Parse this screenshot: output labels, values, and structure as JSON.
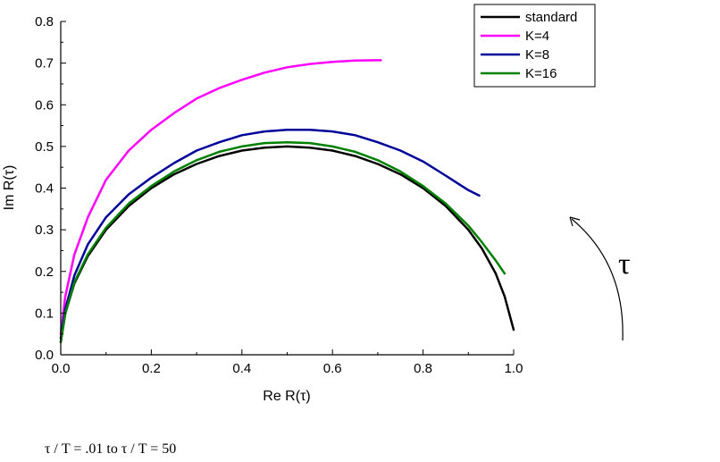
{
  "chart_data": {
    "type": "line",
    "xlabel": "Re R(τ)",
    "ylabel": "Im R(τ)",
    "xlim": [
      0,
      1.0
    ],
    "ylim": [
      0,
      0.8
    ],
    "x_ticks": [
      "0.0",
      "0.2",
      "0.4",
      "0.6",
      "0.8",
      "1.0"
    ],
    "y_ticks": [
      "0.0",
      "0.1",
      "0.2",
      "0.3",
      "0.4",
      "0.5",
      "0.6",
      "0.7",
      "0.8"
    ],
    "legend_position": "top-right",
    "grid": false,
    "series": [
      {
        "name": "standard",
        "color": "#000000",
        "x": [
          0.0,
          0.01,
          0.03,
          0.06,
          0.1,
          0.15,
          0.2,
          0.25,
          0.3,
          0.35,
          0.4,
          0.45,
          0.5,
          0.55,
          0.6,
          0.65,
          0.7,
          0.75,
          0.8,
          0.85,
          0.9,
          0.93,
          0.96,
          0.98,
          1.0
        ],
        "y": [
          0.03,
          0.099,
          0.171,
          0.237,
          0.3,
          0.357,
          0.4,
          0.433,
          0.458,
          0.477,
          0.49,
          0.497,
          0.5,
          0.497,
          0.49,
          0.477,
          0.458,
          0.433,
          0.4,
          0.357,
          0.3,
          0.255,
          0.196,
          0.14,
          0.06
        ]
      },
      {
        "name": "K=4",
        "color": "#ff00ff",
        "x": [
          0.0,
          0.01,
          0.03,
          0.06,
          0.1,
          0.15,
          0.2,
          0.25,
          0.3,
          0.35,
          0.4,
          0.45,
          0.5,
          0.55,
          0.6,
          0.65,
          0.7,
          0.707
        ],
        "y": [
          0.05,
          0.14,
          0.24,
          0.33,
          0.42,
          0.49,
          0.54,
          0.58,
          0.615,
          0.64,
          0.66,
          0.677,
          0.69,
          0.698,
          0.703,
          0.706,
          0.707,
          0.707
        ]
      },
      {
        "name": "K=8",
        "color": "#000099",
        "x": [
          0.0,
          0.01,
          0.03,
          0.06,
          0.1,
          0.15,
          0.2,
          0.25,
          0.3,
          0.35,
          0.4,
          0.45,
          0.5,
          0.55,
          0.6,
          0.65,
          0.7,
          0.75,
          0.8,
          0.85,
          0.9,
          0.924
        ],
        "y": [
          0.04,
          0.11,
          0.19,
          0.265,
          0.33,
          0.385,
          0.425,
          0.46,
          0.49,
          0.51,
          0.527,
          0.536,
          0.54,
          0.54,
          0.536,
          0.527,
          0.51,
          0.49,
          0.464,
          0.43,
          0.395,
          0.382
        ]
      },
      {
        "name": "K=16",
        "color": "#008000",
        "x": [
          0.0,
          0.01,
          0.03,
          0.06,
          0.1,
          0.15,
          0.2,
          0.25,
          0.3,
          0.35,
          0.4,
          0.45,
          0.5,
          0.55,
          0.6,
          0.65,
          0.7,
          0.75,
          0.8,
          0.85,
          0.9,
          0.93,
          0.96,
          0.98
        ],
        "y": [
          0.03,
          0.1,
          0.174,
          0.241,
          0.305,
          0.363,
          0.405,
          0.44,
          0.467,
          0.487,
          0.5,
          0.508,
          0.51,
          0.508,
          0.5,
          0.487,
          0.467,
          0.44,
          0.405,
          0.363,
          0.31,
          0.27,
          0.227,
          0.195
        ]
      }
    ]
  },
  "annotation": {
    "tau_symbol": "τ",
    "footnote": "τ / T = .01 to τ / T = 50"
  }
}
